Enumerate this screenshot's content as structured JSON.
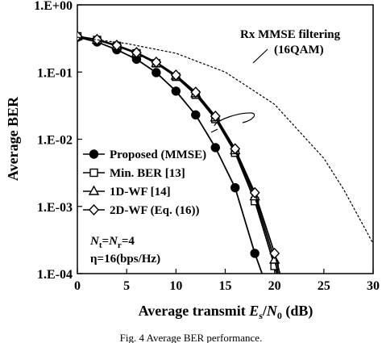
{
  "chart_data": {
    "type": "line",
    "xlabel_parts": {
      "prefix": "Average transmit ",
      "var1": "E",
      "sub1": "s",
      "sep": "/",
      "var2": "N",
      "sub2": "0",
      "suffix": " (dB)"
    },
    "ylabel": "Average BER",
    "xlim": [
      0,
      30
    ],
    "ylim": [
      0.0001,
      1
    ],
    "yscale": "log",
    "x_ticks": [
      "0",
      "5",
      "10",
      "15",
      "20",
      "25",
      "30"
    ],
    "y_ticks": [
      "1.E+00",
      "1.E-01",
      "1.E-02",
      "1.E-03",
      "1.E-04"
    ],
    "grid": false,
    "legend_position": "lower-left",
    "series": [
      {
        "name": "Proposed (MMSE)",
        "marker": "filled-circle",
        "style": "solid",
        "x": [
          0,
          2,
          4,
          6,
          8,
          10,
          12,
          14,
          16,
          18,
          20
        ],
        "y": [
          0.33,
          0.28,
          0.215,
          0.155,
          0.098,
          0.052,
          0.023,
          0.0075,
          0.0019,
          0.0002,
          3e-05
        ]
      },
      {
        "name": "Min. BER [13]",
        "marker": "open-square",
        "style": "solid",
        "x": [
          0,
          2,
          4,
          6,
          8,
          10,
          12,
          14,
          16,
          18,
          20,
          22
        ],
        "y": [
          0.34,
          0.3,
          0.245,
          0.19,
          0.135,
          0.085,
          0.046,
          0.02,
          0.0063,
          0.0012,
          0.00013,
          1e-05
        ]
      },
      {
        "name": "1D-WF [14]",
        "marker": "open-triangle",
        "style": "solid",
        "x": [
          0,
          2,
          4,
          6,
          8,
          10,
          12,
          14,
          16,
          18,
          20,
          22
        ],
        "y": [
          0.34,
          0.3,
          0.245,
          0.19,
          0.135,
          0.088,
          0.048,
          0.021,
          0.0068,
          0.0014,
          0.00016,
          1.2e-05
        ]
      },
      {
        "name": "2D-WF (Eq. (16))",
        "marker": "open-diamond",
        "style": "solid",
        "x": [
          0,
          2,
          4,
          6,
          8,
          10,
          12,
          14,
          16,
          18,
          20,
          22
        ],
        "y": [
          0.34,
          0.305,
          0.25,
          0.195,
          0.14,
          0.09,
          0.05,
          0.022,
          0.0072,
          0.0016,
          0.0002,
          1.5e-05
        ]
      },
      {
        "name": "Rx MMSE filtering (16QAM)",
        "marker": "none",
        "style": "dashed",
        "x": [
          0,
          5,
          10,
          15,
          20,
          25,
          27,
          30
        ],
        "y": [
          0.33,
          0.265,
          0.19,
          0.1,
          0.033,
          0.0052,
          0.0018,
          0.00028
        ]
      }
    ],
    "annotations": {
      "rx_line1": "Rx MMSE filtering",
      "rx_line2": "(16QAM)",
      "params_line1": {
        "a": "N",
        "a_sub": "t",
        "eq": "=",
        "b": "N",
        "b_sub": "r",
        "rest": "=4"
      },
      "params_line2": "η=16(bps/Hz)"
    },
    "caption": "Fig. 4    Average BER performance."
  },
  "colors": {
    "line": "#000000",
    "background": "#ffffff"
  }
}
